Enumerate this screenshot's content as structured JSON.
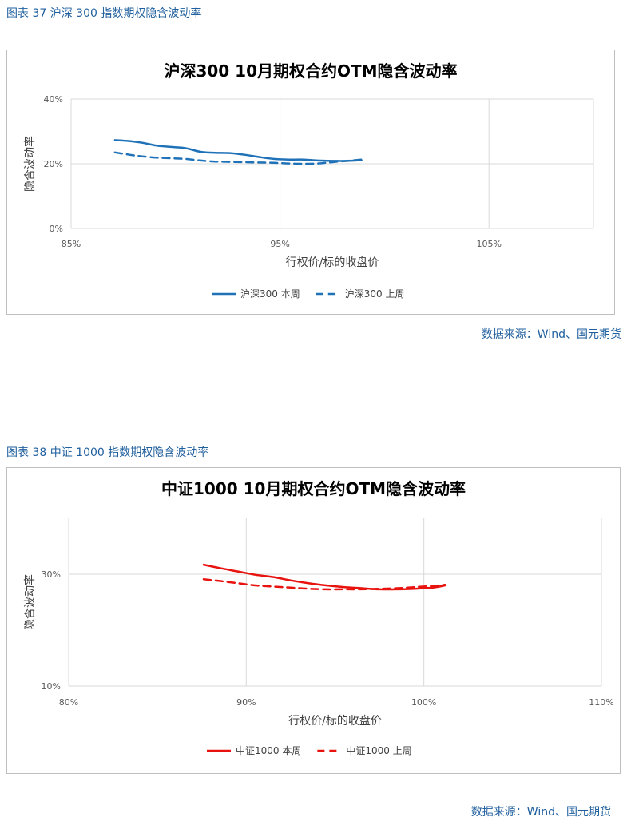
{
  "figures": [
    {
      "caption": "图表 37  沪深 300 指数期权隐含波动率",
      "source": "数据来源：Wind、国元期货"
    },
    {
      "caption": "图表 38  中证 1000 指数期权隐含波动率",
      "source": "数据来源：Wind、国元期货"
    }
  ],
  "chart_data": [
    {
      "type": "line",
      "title": "沪深300 10月期权合约OTM隐含波动率",
      "xlabel": "行权价/标的收盘价",
      "ylabel": "隐含波动率",
      "xlim": [
        85,
        110
      ],
      "ylim": [
        0,
        40
      ],
      "xticks": [
        85,
        95,
        105
      ],
      "xtick_labels": [
        "85%",
        "95%",
        "105%"
      ],
      "yticks": [
        0,
        20,
        40
      ],
      "ytick_labels": [
        "0%",
        "20%",
        "40%"
      ],
      "grid": true,
      "legend": "bottom",
      "series": [
        {
          "name": "沪深300 本周",
          "color": "#1f72b8",
          "dash": "solid",
          "x": [
            87.1,
            87.8,
            88.4,
            89.1,
            89.8,
            90.5,
            91.2,
            91.9,
            92.6,
            93.3,
            94.0,
            94.7,
            95.4,
            96.1,
            96.8,
            97.5,
            98.2,
            98.9
          ],
          "y": [
            27.3,
            27.0,
            26.5,
            25.6,
            25.2,
            24.8,
            23.7,
            23.4,
            23.3,
            22.8,
            22.1,
            21.5,
            21.3,
            21.3,
            21.0,
            20.9,
            20.9,
            21.1
          ]
        },
        {
          "name": "沪深300 上周",
          "color": "#1f72b8",
          "dash": "dashed",
          "x": [
            87.1,
            87.8,
            88.4,
            89.1,
            89.8,
            90.5,
            91.2,
            91.9,
            92.6,
            93.3,
            94.0,
            94.7,
            95.4,
            96.1,
            96.8,
            97.5,
            98.2,
            98.9
          ],
          "y": [
            23.5,
            22.8,
            22.3,
            21.9,
            21.7,
            21.5,
            21.0,
            20.7,
            20.6,
            20.5,
            20.4,
            20.3,
            20.1,
            20.0,
            20.1,
            20.5,
            20.9,
            21.3
          ]
        }
      ]
    },
    {
      "type": "line",
      "title": "中证1000 10月期权合约OTM隐含波动率",
      "xlabel": "行权价/标的收盘价",
      "ylabel": "隐含波动率",
      "xlim": [
        80,
        110
      ],
      "ylim": [
        10,
        40
      ],
      "xticks": [
        80,
        90,
        100,
        110
      ],
      "xtick_labels": [
        "80%",
        "90%",
        "100%",
        "110%"
      ],
      "yticks": [
        10,
        30
      ],
      "ytick_labels": [
        "10%",
        "30%"
      ],
      "grid": true,
      "legend": "bottom",
      "series": [
        {
          "name": "中证1000 本周",
          "color": "#e8120e",
          "dash": "solid",
          "x": [
            87.6,
            88.5,
            89.5,
            90.5,
            91.5,
            92.5,
            93.5,
            94.5,
            95.5,
            96.5,
            97.5,
            98.5,
            99.5,
            100.5,
            101.2
          ],
          "y": [
            31.7,
            31.1,
            30.5,
            29.9,
            29.5,
            28.9,
            28.4,
            28.0,
            27.7,
            27.5,
            27.3,
            27.3,
            27.4,
            27.6,
            28.0
          ]
        },
        {
          "name": "中证1000 上周",
          "color": "#e8120e",
          "dash": "dashed",
          "x": [
            87.6,
            88.5,
            89.5,
            90.5,
            91.5,
            92.5,
            93.5,
            94.5,
            95.5,
            96.5,
            97.5,
            98.5,
            99.5,
            100.5,
            101.2
          ],
          "y": [
            29.1,
            28.8,
            28.4,
            28.0,
            27.8,
            27.6,
            27.4,
            27.3,
            27.3,
            27.3,
            27.4,
            27.5,
            27.7,
            27.9,
            28.1
          ]
        }
      ]
    }
  ]
}
